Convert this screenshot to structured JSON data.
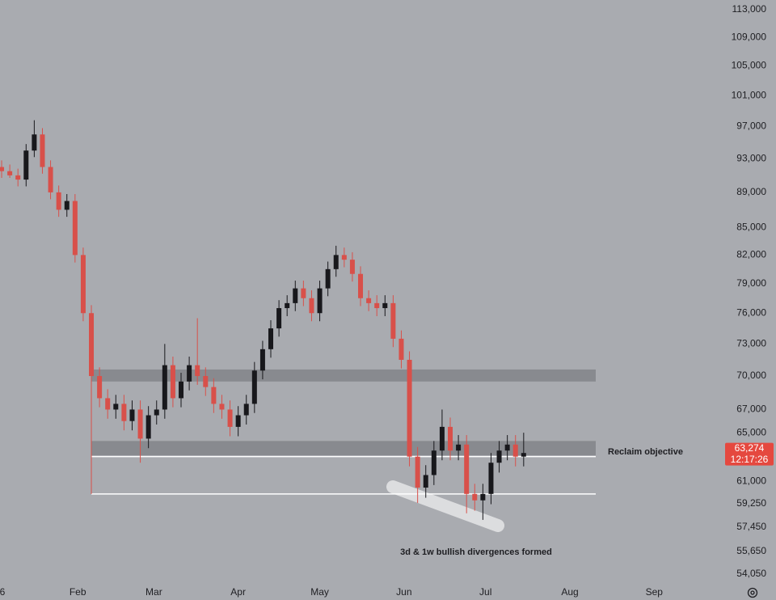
{
  "chart_data": {
    "type": "candlestick",
    "x": [
      3,
      6,
      9,
      12,
      15,
      18,
      21,
      24,
      27,
      30,
      33,
      36,
      39,
      42,
      45,
      48,
      51,
      54,
      57,
      60,
      63,
      66,
      69,
      72,
      75,
      78,
      81,
      84,
      87,
      90,
      93,
      96,
      99,
      102,
      105,
      108,
      111,
      114,
      117,
      120,
      123,
      126,
      129,
      132,
      135,
      138,
      141,
      144,
      147,
      150,
      153,
      156,
      159,
      162,
      165,
      168,
      171,
      174,
      177,
      180,
      183,
      186,
      189,
      192,
      195
    ],
    "open": [
      92000,
      91500,
      91000,
      90500,
      94000,
      96000,
      92000,
      89000,
      87000,
      88000,
      82000,
      76000,
      70000,
      68000,
      67000,
      67500,
      66000,
      67000,
      64500,
      66500,
      67000,
      71000,
      68000,
      69500,
      71000,
      70000,
      69000,
      67500,
      67000,
      65500,
      66500,
      67500,
      70500,
      72500,
      74500,
      76500,
      77000,
      78500,
      77500,
      76000,
      78500,
      80500,
      82000,
      81500,
      80000,
      77500,
      77000,
      76500,
      77000,
      73500,
      71500,
      63000,
      60500,
      61500,
      63500,
      65500,
      63500,
      64000,
      60000,
      59500,
      60000,
      62500,
      63500,
      64000,
      63000
    ],
    "high": [
      92800,
      92300,
      91800,
      94800,
      97800,
      96800,
      92800,
      89800,
      88800,
      88800,
      82800,
      76800,
      70800,
      68800,
      68300,
      68300,
      67800,
      67800,
      67300,
      67800,
      73000,
      71800,
      70300,
      71800,
      75500,
      70800,
      69800,
      68300,
      67800,
      67300,
      68300,
      71300,
      73300,
      75300,
      77300,
      77800,
      79300,
      79300,
      78300,
      79300,
      81300,
      83000,
      82800,
      82300,
      80800,
      78300,
      77800,
      77800,
      77800,
      74300,
      72300,
      63800,
      62300,
      64300,
      67000,
      66300,
      64800,
      64800,
      60800,
      60800,
      63300,
      64300,
      64800,
      64800,
      65000
    ],
    "low": [
      90700,
      90700,
      89700,
      89700,
      93200,
      91200,
      88200,
      86200,
      86200,
      81200,
      75200,
      60000,
      67200,
      66200,
      66200,
      65200,
      65200,
      62500,
      63700,
      65700,
      66200,
      67200,
      67200,
      68700,
      69200,
      68200,
      66700,
      66200,
      64700,
      64700,
      65700,
      66700,
      69700,
      71700,
      73700,
      75700,
      76200,
      76700,
      75200,
      75200,
      77700,
      79700,
      80700,
      79200,
      76700,
      76200,
      75700,
      75700,
      72700,
      70700,
      62200,
      59300,
      59700,
      60700,
      62700,
      62700,
      62700,
      58500,
      58700,
      58000,
      59200,
      61700,
      62700,
      62200,
      62200
    ],
    "close": [
      91500,
      91000,
      90500,
      94000,
      96000,
      92000,
      89000,
      87000,
      88000,
      82000,
      76000,
      70000,
      68000,
      67000,
      67500,
      66000,
      67000,
      64500,
      66500,
      67000,
      71000,
      68000,
      69500,
      71000,
      70000,
      69000,
      67500,
      67000,
      65500,
      66500,
      67500,
      70500,
      72500,
      74500,
      76500,
      77000,
      78500,
      77500,
      76000,
      78500,
      80500,
      82000,
      81500,
      80000,
      77500,
      77000,
      76500,
      77000,
      73500,
      71500,
      63000,
      60500,
      61500,
      63500,
      65500,
      63500,
      64000,
      60000,
      59500,
      60000,
      62500,
      63500,
      64000,
      63000,
      63300
    ],
    "up_color": "#18181c",
    "down_color": "#d8504a",
    "xlim": [
      2.4,
      267
    ],
    "xticks": [
      {
        "value": 0,
        "label": "6"
      },
      {
        "value": 31,
        "label": "Feb"
      },
      {
        "value": 59,
        "label": "Mar"
      },
      {
        "value": 90,
        "label": "Apr"
      },
      {
        "value": 120,
        "label": "May"
      },
      {
        "value": 151,
        "label": "Jun"
      },
      {
        "value": 181,
        "label": "Jul"
      },
      {
        "value": 212,
        "label": "Aug"
      },
      {
        "value": 243,
        "label": "Sep"
      }
    ],
    "ylim": [
      53460,
      114450
    ],
    "log_scale": true,
    "yticks": [
      {
        "value": 113000,
        "label": "113,000"
      },
      {
        "value": 109000,
        "label": "109,000"
      },
      {
        "value": 105000,
        "label": "105,000"
      },
      {
        "value": 101000,
        "label": "101,000"
      },
      {
        "value": 97000,
        "label": "97,000"
      },
      {
        "value": 93000,
        "label": "93,000"
      },
      {
        "value": 89000,
        "label": "89,000"
      },
      {
        "value": 85000,
        "label": "85,000"
      },
      {
        "value": 82000,
        "label": "82,000"
      },
      {
        "value": 79000,
        "label": "79,000"
      },
      {
        "value": 76000,
        "label": "76,000"
      },
      {
        "value": 73000,
        "label": "73,000"
      },
      {
        "value": 70000,
        "label": "70,000"
      },
      {
        "value": 67000,
        "label": "67,000"
      },
      {
        "value": 65000,
        "label": "65,000"
      },
      {
        "value": 61000,
        "label": "61,000"
      },
      {
        "value": 59250,
        "label": "59,250"
      },
      {
        "value": 57450,
        "label": "57,450"
      },
      {
        "value": 55650,
        "label": "55,650"
      },
      {
        "value": 54050,
        "label": "54,050"
      }
    ],
    "zones": [
      {
        "low": 69500,
        "high": 70600
      },
      {
        "low": 63100,
        "high": 64300
      }
    ],
    "levels": [
      63000,
      60000
    ],
    "last_price": {
      "value": 63274,
      "label": "63,274"
    },
    "countdown": "12:17:26",
    "annotations": [
      "Reclaim objective",
      "3d & 1w bullish divergences formed"
    ]
  }
}
